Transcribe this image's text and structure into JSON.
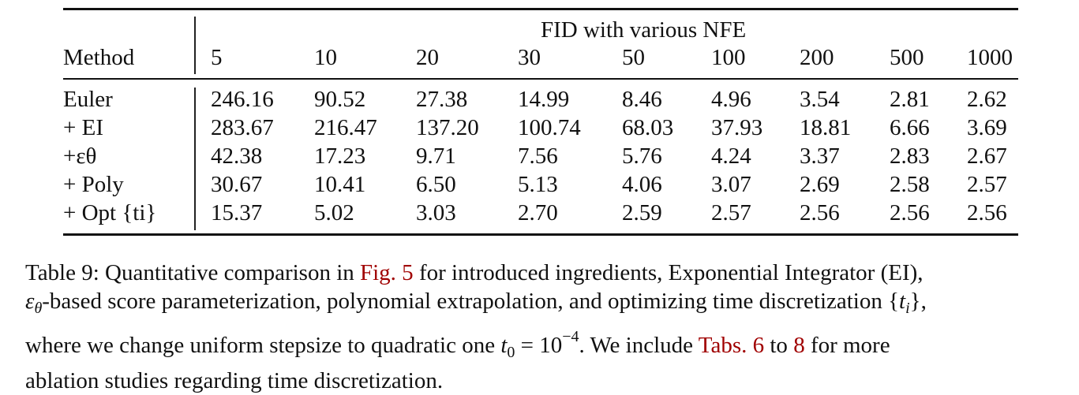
{
  "table": {
    "group_header": "FID with various NFE",
    "method_header": "Method",
    "columns": [
      "5",
      "10",
      "20",
      "30",
      "50",
      "100",
      "200",
      "500",
      "1000"
    ],
    "rows": [
      {
        "method": "Euler",
        "values": [
          "246.16",
          "90.52",
          "27.38",
          "14.99",
          "8.46",
          "4.96",
          "3.54",
          "2.81",
          "2.62"
        ]
      },
      {
        "method": "+ EI",
        "values": [
          "283.67",
          "216.47",
          "137.20",
          "100.74",
          "68.03",
          "37.93",
          "18.81",
          "6.66",
          "3.69"
        ]
      },
      {
        "method": "+εθ",
        "values": [
          "42.38",
          "17.23",
          "9.71",
          "7.56",
          "5.76",
          "4.24",
          "3.37",
          "2.83",
          "2.67"
        ]
      },
      {
        "method": "+ Poly",
        "values": [
          "30.67",
          "10.41",
          "6.50",
          "5.13",
          "4.06",
          "3.07",
          "2.69",
          "2.58",
          "2.57"
        ]
      },
      {
        "method": "+ Opt {ti}",
        "values": [
          "15.37",
          "5.02",
          "3.03",
          "2.70",
          "2.59",
          "2.57",
          "2.56",
          "2.56",
          "2.56"
        ]
      }
    ]
  },
  "caption": {
    "l1_a": "Table 9:  Quantitative comparison in ",
    "l1_ref": "Fig. 5",
    "l1_b": " for introduced ingredients, Exponential Integrator (EI),",
    "l2_eps": "ε",
    "l2_theta": "θ",
    "l2_a": "-based score parameterization, polynomial extrapolation, and optimizing time discretization {",
    "l2_t": "t",
    "l2_i": "i",
    "l2_b": "},",
    "l3_a": "where we change uniform stepsize to quadratic one ",
    "l3_t": "t",
    "l3_0": "0",
    "l3_eq": " = 10",
    "l3_exp": "−4",
    "l3_b": ".  We include ",
    "l3_ref1": "Tabs. 6",
    "l3_c": " to ",
    "l3_ref2": "8",
    "l3_d": " for more",
    "l4": "ablation studies regarding time discretization."
  },
  "colors": {
    "link": "#a00000",
    "text": "#111111"
  }
}
